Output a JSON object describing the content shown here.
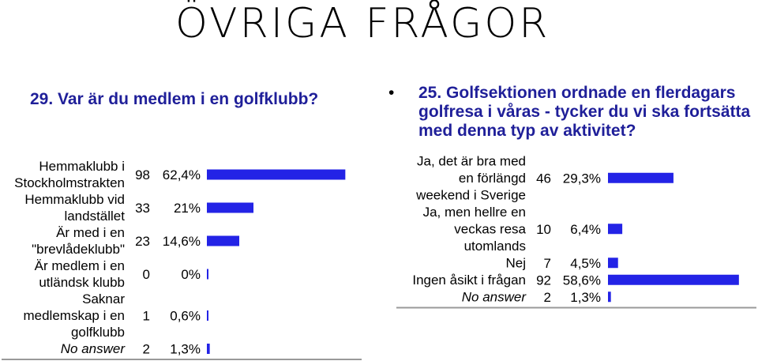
{
  "slide": {
    "title": "Övriga frågor",
    "bullet": "•"
  },
  "colors": {
    "bar": "#2323e6",
    "question": "#1f1f99",
    "baseline": "#999999"
  },
  "chart_data": [
    {
      "type": "bar",
      "orientation": "horizontal",
      "title": "29. Var är du medlem i en golfklubb?",
      "xlim": [
        0,
        100
      ],
      "categories": [
        [
          "Hemmaklubb i",
          "Stockholmstrakten"
        ],
        [
          "Hemmaklubb vid",
          "landstället"
        ],
        [
          "Är med i en",
          "\"brevlådeklubb\""
        ],
        [
          "Är medlem i en",
          "utländsk klubb"
        ],
        [
          "Saknar",
          "medlemskap i en",
          "golfklubb"
        ],
        [
          "No answer"
        ]
      ],
      "counts": [
        "98",
        "33",
        "23",
        "0",
        "1",
        "2"
      ],
      "percent_labels": [
        "62,4%",
        "21%",
        "14,6%",
        "0%",
        "0,6%",
        "1,3%"
      ],
      "values": [
        62.4,
        21,
        14.6,
        0,
        0.6,
        1.3
      ]
    },
    {
      "type": "bar",
      "orientation": "horizontal",
      "title": "25. Golfsektionen ordnade en flerdagars golfresa i våras - tycker du vi ska fortsätta med denna typ av aktivitet?",
      "xlim": [
        0,
        100
      ],
      "categories": [
        [
          "Ja, det är bra med",
          "en förlängd",
          "weekend i Sverige"
        ],
        [
          "Ja, men hellre en",
          "veckas resa",
          "utomlands"
        ],
        [
          "Nej"
        ],
        [
          "Ingen åsikt i frågan"
        ],
        [
          "No answer"
        ]
      ],
      "counts": [
        "46",
        "10",
        "7",
        "92",
        "2"
      ],
      "percent_labels": [
        "29,3%",
        "6,4%",
        "4,5%",
        "58,6%",
        "1,3%"
      ],
      "values": [
        29.3,
        6.4,
        4.5,
        58.6,
        1.3
      ]
    }
  ]
}
